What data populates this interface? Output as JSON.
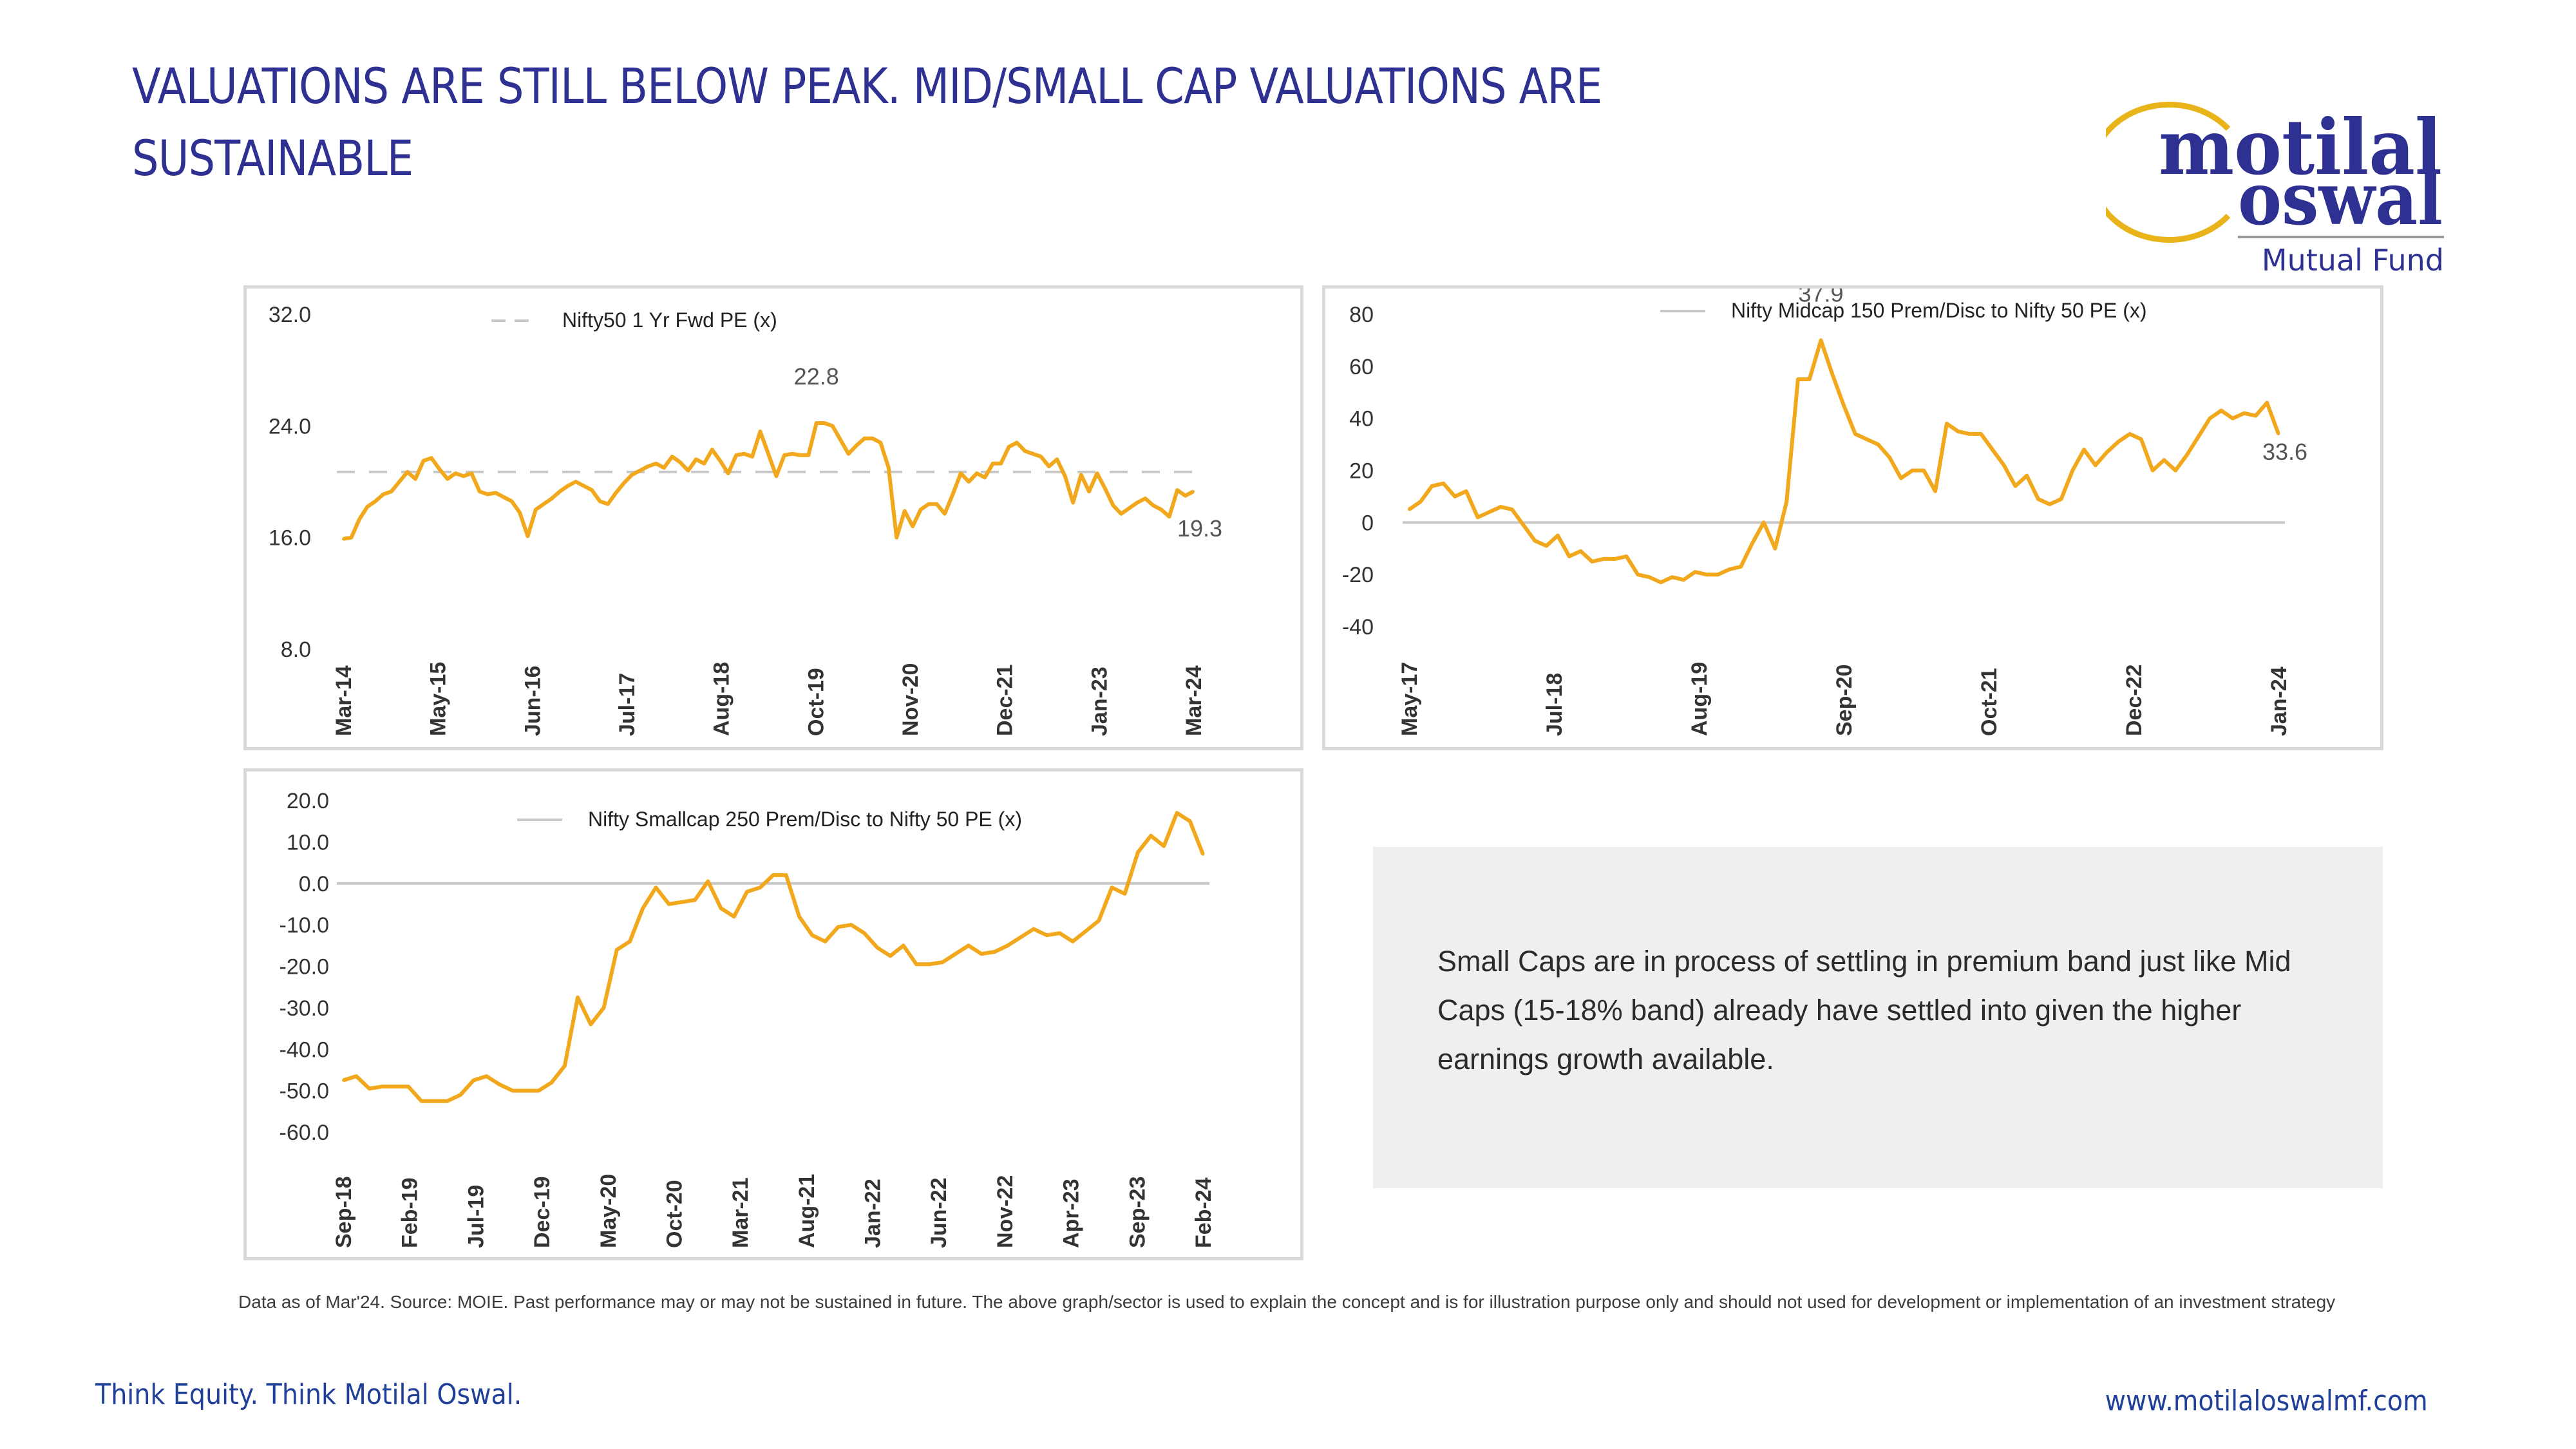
{
  "slide": {
    "title": "VALUATIONS ARE STILL BELOW PEAK. MID/SMALL CAP VALUATIONS ARE SUSTAINABLE",
    "logo": {
      "line1": "motilal",
      "line2": "oswal",
      "line3": "Mutual Fund",
      "ring_color": "#e8b41a",
      "text_color": "#2e3192"
    },
    "note": "Small Caps are in process of settling in premium band just like Mid Caps (15-18% band) already have settled into given the higher earnings growth available.",
    "disclaimer": "Data as of Mar'24. Source: MOIE. Past performance may or may not be sustained in future. The above graph/sector is used to explain the concept and is for illustration purpose only and should not used for development or implementation of an investment strategy",
    "footer_left": "Think Equity. Think Motilal Oswal.",
    "footer_right": "www.motilaloswalmf.com"
  },
  "colors": {
    "line": "#f2a81d",
    "reference": "#c8c8c8",
    "title": "#2e3192",
    "footer": "#1f3f99"
  },
  "chart_data": [
    {
      "type": "line",
      "title": "",
      "legend": "Nifty50 1 Yr Fwd PE (x)",
      "legend_style": "dashed",
      "legend_position": "top-center",
      "xlabel": "",
      "ylabel": "",
      "ylim": [
        8,
        32
      ],
      "yticks": [
        "32.0",
        "24.0",
        "16.0",
        "8.0"
      ],
      "ytick_values": [
        32,
        24,
        16,
        8
      ],
      "xticks": [
        "Mar-14",
        "May-15",
        "Jun-16",
        "Jul-17",
        "Aug-18",
        "Oct-19",
        "Nov-20",
        "Dec-21",
        "Jan-23",
        "Mar-24"
      ],
      "reference_line": {
        "value": 20.7,
        "style": "dashed",
        "label": "average"
      },
      "annotations": [
        {
          "text": "22.8",
          "near": "Dec-21 peak"
        },
        {
          "text": "19.3",
          "near": "Mar-24 end"
        }
      ],
      "series": [
        {
          "name": "Nifty50 1 Yr Fwd PE (x)",
          "values": [
            15.9,
            16.0,
            17.3,
            18.2,
            18.6,
            19.1,
            19.3,
            20.0,
            20.7,
            20.2,
            21.5,
            21.7,
            20.9,
            20.2,
            20.6,
            20.4,
            20.6,
            19.3,
            19.1,
            19.2,
            18.9,
            18.6,
            17.8,
            16.1,
            18.0,
            18.4,
            18.8,
            19.3,
            19.7,
            20.0,
            19.7,
            19.4,
            18.6,
            18.4,
            19.2,
            19.9,
            20.5,
            20.8,
            21.1,
            21.3,
            21.0,
            21.8,
            21.4,
            20.8,
            21.6,
            21.3,
            22.3,
            21.5,
            20.6,
            21.9,
            22.0,
            21.8,
            23.6,
            22.0,
            20.4,
            21.9,
            22.0,
            21.9,
            21.9,
            24.2,
            24.2,
            24.0,
            23.0,
            22.0,
            22.6,
            23.1,
            23.1,
            22.8,
            21.0,
            16.0,
            17.9,
            16.8,
            18.0,
            18.4,
            18.4,
            17.7,
            19.1,
            20.6,
            20.0,
            20.6,
            20.3,
            21.3,
            21.3,
            22.5,
            22.8,
            22.2,
            22.0,
            21.8,
            21.1,
            21.6,
            20.4,
            18.5,
            20.5,
            19.3,
            20.6,
            19.5,
            18.3,
            17.7,
            18.1,
            18.5,
            18.8,
            18.3,
            18.0,
            17.5,
            19.4,
            19.0,
            19.3
          ]
        }
      ]
    },
    {
      "type": "line",
      "title": "",
      "legend": "Nifty Midcap 150 Prem/Disc to Nifty 50 PE (x)",
      "legend_style": "solid",
      "legend_position": "top-center",
      "xlabel": "",
      "ylabel": "",
      "ylim": [
        -40,
        80
      ],
      "yticks": [
        "80",
        "60",
        "40",
        "20",
        "0",
        "-20",
        "-40"
      ],
      "ytick_values": [
        80,
        60,
        40,
        20,
        0,
        -20,
        -40
      ],
      "xticks": [
        "May-17",
        "Jul-18",
        "Aug-19",
        "Sep-20",
        "Oct-21",
        "Dec-22",
        "Jan-24"
      ],
      "reference_line": {
        "value": 0,
        "style": "solid"
      },
      "annotations": [
        {
          "text": "37.9",
          "near": "Oct-21 peak"
        },
        {
          "text": "33.6",
          "near": "Jan-24 end"
        }
      ],
      "series": [
        {
          "name": "Nifty Midcap 150 Prem/Disc to Nifty 50 PE (x)",
          "values": [
            5,
            8,
            14,
            15,
            10,
            12,
            2,
            4,
            6,
            5,
            -1,
            -7,
            -9,
            -5,
            -13,
            -11,
            -15,
            -14,
            -14,
            -13,
            -20,
            -21,
            -23,
            -21,
            -22,
            -19,
            -20,
            -20,
            -18,
            -17,
            -8,
            0,
            -10,
            8,
            55,
            55,
            70,
            57,
            45,
            34,
            32,
            30,
            25,
            17,
            20,
            20,
            12,
            38,
            35,
            34,
            34,
            28,
            22,
            14,
            18,
            9,
            7,
            9,
            20,
            28,
            22,
            27,
            31,
            34,
            32,
            20,
            24,
            20,
            26,
            33,
            40,
            43,
            40,
            42,
            41,
            46,
            34
          ]
        }
      ]
    },
    {
      "type": "line",
      "title": "",
      "legend": "Nifty Smallcap 250 Prem/Disc to Nifty 50 PE (x)",
      "legend_style": "solid",
      "legend_position": "top-center",
      "xlabel": "",
      "ylabel": "",
      "ylim": [
        -60,
        20
      ],
      "yticks": [
        "20.0",
        "10.0",
        "0.0",
        "-10.0",
        "-20.0",
        "-30.0",
        "-40.0",
        "-50.0",
        "-60.0"
      ],
      "ytick_values": [
        20,
        10,
        0,
        -10,
        -20,
        -30,
        -40,
        -50,
        -60
      ],
      "xticks": [
        "Sep-18",
        "Feb-19",
        "Jul-19",
        "Dec-19",
        "May-20",
        "Oct-20",
        "Mar-21",
        "Aug-21",
        "Jan-22",
        "Jun-22",
        "Nov-22",
        "Apr-23",
        "Sep-23",
        "Feb-24"
      ],
      "reference_line": {
        "value": 0,
        "style": "solid"
      },
      "annotations": [],
      "series": [
        {
          "name": "Nifty Smallcap 250 Prem/Disc to Nifty 50 PE (x)",
          "values": [
            -47.5,
            -46.5,
            -49.5,
            -49.0,
            -49.0,
            -49.0,
            -52.5,
            -52.5,
            -52.5,
            -51.0,
            -47.5,
            -46.5,
            -48.5,
            -50.0,
            -50.0,
            -50.0,
            -48.0,
            -44.0,
            -27.5,
            -34.0,
            -30.0,
            -16.0,
            -14.0,
            -6.0,
            -1.0,
            -5.0,
            -4.5,
            -4.0,
            0.5,
            -6.0,
            -8.0,
            -2.0,
            -1.0,
            2.0,
            2.0,
            -8.0,
            -12.5,
            -14.0,
            -10.5,
            -10.0,
            -12.0,
            -15.5,
            -17.5,
            -15.0,
            -19.5,
            -19.5,
            -19.0,
            -17.0,
            -15.0,
            -17.0,
            -16.5,
            -15.0,
            -13.0,
            -11.0,
            -12.5,
            -12.0,
            -14.0,
            -11.5,
            -9.0,
            -1.0,
            -2.5,
            7.5,
            11.5,
            9.0,
            17.0,
            15.0,
            7.0
          ]
        }
      ]
    }
  ]
}
